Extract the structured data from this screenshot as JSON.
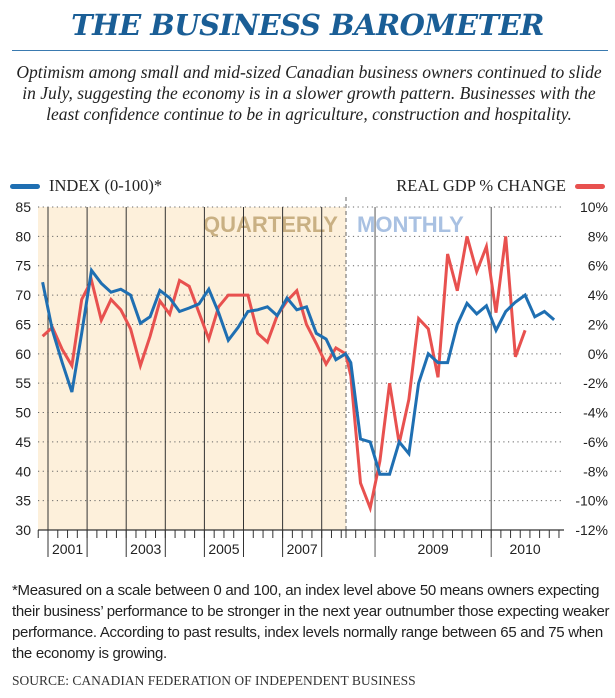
{
  "header": {
    "title": "THE BUSINESS BAROMETER",
    "dek": "Optimism among small and mid-sized Canadian business owners continued to slide in July, suggesting the economy is in a slower growth pattern. Businesses with the least confidence continue to be in agriculture, construction and hospitality."
  },
  "legend": {
    "left_label": "INDEX (0-100)*",
    "right_label": "REAL GDP % CHANGE",
    "index_color": "#1f6fb2",
    "gdp_color": "#e8514f"
  },
  "footnote": "*Measured on a scale between 0 and 100, an index level above 50 means owners expecting their business’ performance to be stronger in the next year outnumber those expecting weaker performance. According to past results, index levels normally range between 65 and 75 when the economy is growing.",
  "source": "SOURCE: CANADIAN FEDERATION OF INDEPENDENT BUSINESS",
  "chart_data": {
    "type": "line",
    "title": "THE BUSINESS BAROMETER",
    "period_labels": {
      "quarterly": "QUARTERLY",
      "monthly": "MONTHLY"
    },
    "period_colors": {
      "quarterly_bg": "#fdf0db",
      "quarterly_text": "#c9b083",
      "monthly_text": "#a9c1e2"
    },
    "left_axis": {
      "label": "INDEX (0-100)*",
      "ylim": [
        30,
        85
      ],
      "ticks": [
        "85",
        "80",
        "75",
        "70",
        "65",
        "60",
        "55",
        "50",
        "45",
        "40",
        "35",
        "30"
      ]
    },
    "right_axis": {
      "label": "REAL GDP % CHANGE",
      "ylim": [
        -12,
        10
      ],
      "ticks": [
        "10%",
        "8%",
        "6%",
        "4%",
        "2%",
        "0%",
        "-2%",
        "-4%",
        "-6%",
        "-8%",
        "-10%",
        "-12%"
      ]
    },
    "x_tick_labels": [
      "2001",
      "2003",
      "2005",
      "2007",
      "2009",
      "2010"
    ],
    "grid": true,
    "quarterly": {
      "x": [
        "2000Q4",
        "2001Q1",
        "2001Q2",
        "2001Q3",
        "2001Q4",
        "2002Q1",
        "2002Q2",
        "2002Q3",
        "2002Q4",
        "2003Q1",
        "2003Q2",
        "2003Q3",
        "2003Q4",
        "2004Q1",
        "2004Q2",
        "2004Q3",
        "2004Q4",
        "2005Q1",
        "2005Q2",
        "2005Q3",
        "2005Q4",
        "2006Q1",
        "2006Q2",
        "2006Q3",
        "2006Q4",
        "2007Q1",
        "2007Q2",
        "2007Q3",
        "2007Q4",
        "2008Q1",
        "2008Q2",
        "2008Q3"
      ],
      "series": [
        {
          "name": "INDEX (0-100)*",
          "axis": "left",
          "values": [
            72.2,
            64.0,
            58.5,
            53.5,
            63.5,
            74.2,
            72.0,
            70.5,
            71.0,
            70.0,
            65.2,
            66.3,
            70.8,
            69.5,
            67.2,
            67.8,
            68.5,
            71.0,
            67.0,
            62.3,
            64.5,
            67.2,
            67.5,
            68.0,
            66.5,
            69.5,
            67.5,
            68.0,
            63.5,
            62.5,
            59.0,
            60.0
          ]
        },
        {
          "name": "REAL GDP % CHANGE",
          "axis": "right",
          "values": [
            1.2,
            1.8,
            0.3,
            -0.8,
            3.7,
            5.0,
            2.3,
            3.7,
            3.0,
            1.7,
            -0.8,
            1.2,
            3.6,
            2.7,
            5.0,
            4.6,
            2.8,
            1.0,
            3.2,
            4.0,
            4.0,
            4.0,
            1.4,
            0.8,
            2.6,
            3.6,
            4.3,
            2.0,
            0.7,
            -0.7,
            0.4,
            0.0
          ]
        }
      ]
    },
    "monthly": {
      "x": [
        "2008-10",
        "2008-11",
        "2008-12",
        "2009-01",
        "2009-02",
        "2009-03",
        "2009-04",
        "2009-05",
        "2009-06",
        "2009-07",
        "2009-08",
        "2009-09",
        "2009-10",
        "2009-11",
        "2009-12",
        "2010-01",
        "2010-02",
        "2010-03",
        "2010-04",
        "2010-05",
        "2010-06",
        "2010-07"
      ],
      "series": [
        {
          "name": "INDEX (0-100)*",
          "axis": "left",
          "values": [
            58.5,
            45.5,
            45.0,
            39.5,
            39.5,
            45.0,
            43.0,
            55.0,
            60.0,
            58.5,
            58.5,
            65.0,
            68.6,
            66.8,
            68.2,
            64.0,
            67.2,
            68.8,
            70.0,
            66.3,
            67.2,
            65.8
          ]
        },
        {
          "name": "REAL GDP % CHANGE",
          "axis": "right",
          "values": [
            -1.5,
            -8.8,
            -10.5,
            -7.3,
            -2.0,
            -6.1,
            -3.1,
            2.4,
            1.7,
            -1.6,
            6.8,
            4.3,
            8.0,
            5.6,
            7.3,
            2.8,
            8.0,
            -0.2,
            1.6
          ]
        }
      ]
    }
  }
}
